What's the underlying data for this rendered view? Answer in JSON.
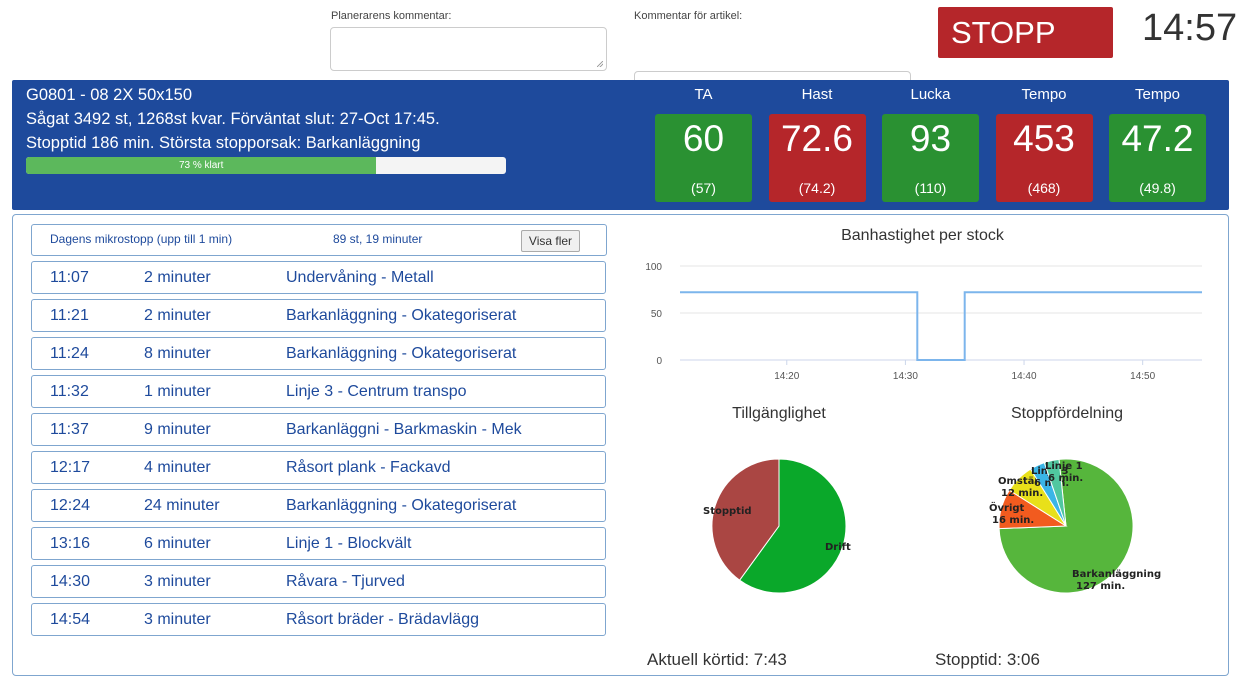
{
  "comments": {
    "planner_label": "Planerarens kommentar:",
    "planner_value": "",
    "article_label": "Kommentar för artikel:",
    "article_value": ""
  },
  "stop_button": "STOPP",
  "clock": "14:57",
  "order": {
    "line1": "G0801 - 08 2X 50x150",
    "line2": "Sågat 3492 st, 1268st kvar. Förväntat slut: 27-Oct 17:45.",
    "line3": "Stopptid 186 min. Största stopporsak: Barkanläggning",
    "progress_percent": 73,
    "progress_label": "73 % klart"
  },
  "metrics": [
    {
      "title": "TA",
      "value": "60",
      "sub": "(57)",
      "color": "#2a9132"
    },
    {
      "title": "Hast",
      "value": "72.6",
      "sub": "(74.2)",
      "color": "#b5262a"
    },
    {
      "title": "Lucka",
      "value": "93",
      "sub": "(110)",
      "color": "#2a9132"
    },
    {
      "title": "Tempo",
      "value": "453",
      "sub": "(468)",
      "color": "#b5262a"
    },
    {
      "title": "Tempo",
      "value": "47.2",
      "sub": "(49.8)",
      "color": "#2a9132"
    }
  ],
  "micro": {
    "label": "Dagens mikrostopp (upp till 1 min)",
    "summary": "89 st, 19 minuter",
    "button": "Visa fler"
  },
  "stops": [
    {
      "time": "11:07",
      "duration": "2 minuter",
      "reason": "Undervåning - Metall"
    },
    {
      "time": "11:21",
      "duration": "2 minuter",
      "reason": "Barkanläggning - Okategoriserat"
    },
    {
      "time": "11:24",
      "duration": "8 minuter",
      "reason": "Barkanläggning - Okategoriserat"
    },
    {
      "time": "11:32",
      "duration": "1 minuter",
      "reason": "Linje 3 - Centrum transpo"
    },
    {
      "time": "11:37",
      "duration": "9 minuter",
      "reason": "Barkanläggni - Barkmaskin - Mek"
    },
    {
      "time": "12:17",
      "duration": "4 minuter",
      "reason": "Råsort plank - Fackavd"
    },
    {
      "time": "12:24",
      "duration": "24 minuter",
      "reason": "Barkanläggning - Okategoriserat"
    },
    {
      "time": "13:16",
      "duration": "6 minuter",
      "reason": "Linje 1 - Blockvält"
    },
    {
      "time": "14:30",
      "duration": "3 minuter",
      "reason": "Råvara - Tjurved"
    },
    {
      "time": "14:54",
      "duration": "3 minuter",
      "reason": "Råsort bräder - Brädavlägg"
    }
  ],
  "chart_data": [
    {
      "type": "line",
      "title": "Banhastighet per stock",
      "xlabel": "",
      "ylabel": "",
      "xticks": [
        "14:20",
        "14:30",
        "14:40",
        "14:50"
      ],
      "yticks": [
        0,
        50,
        100
      ],
      "ylim": [
        0,
        100
      ],
      "xlim": [
        "14:11",
        "14:55"
      ],
      "grid": true,
      "series": [
        {
          "color": "#7cb5ec",
          "points": [
            [
              "14:11",
              72
            ],
            [
              "14:31",
              72
            ],
            [
              "14:31",
              0
            ],
            [
              "14:35",
              0
            ],
            [
              "14:35",
              72
            ],
            [
              "14:55",
              72
            ]
          ]
        }
      ]
    },
    {
      "type": "pie",
      "title": "Tillgänglighet",
      "slices": [
        {
          "label": "Drift",
          "value": 60,
          "color": "#0aa82a"
        },
        {
          "label": "Stopptid",
          "value": 40,
          "color": "#aa4643"
        }
      ]
    },
    {
      "type": "pie",
      "title": "Stoppfördelning",
      "slices": [
        {
          "label": "Barkanläggning",
          "value": 127,
          "unit": "127 min.",
          "color": "#56b63c"
        },
        {
          "label": "Övrigt",
          "value": 16,
          "unit": "16 min.",
          "color": "#f25b1f"
        },
        {
          "label": "Omställ",
          "value": 12,
          "unit": "12 min.",
          "color": "#e8e01a"
        },
        {
          "label": "Linje 3",
          "value": 6,
          "unit": "6 min.",
          "color": "#3ab5e6"
        },
        {
          "label": "Linje 1",
          "value": 6,
          "unit": "6 min.",
          "color": "#50c7a0"
        }
      ]
    }
  ],
  "bottom": {
    "cycle_time": "Aktuell körtid: 7:43",
    "stop_time": "Stopptid: 3:06"
  }
}
